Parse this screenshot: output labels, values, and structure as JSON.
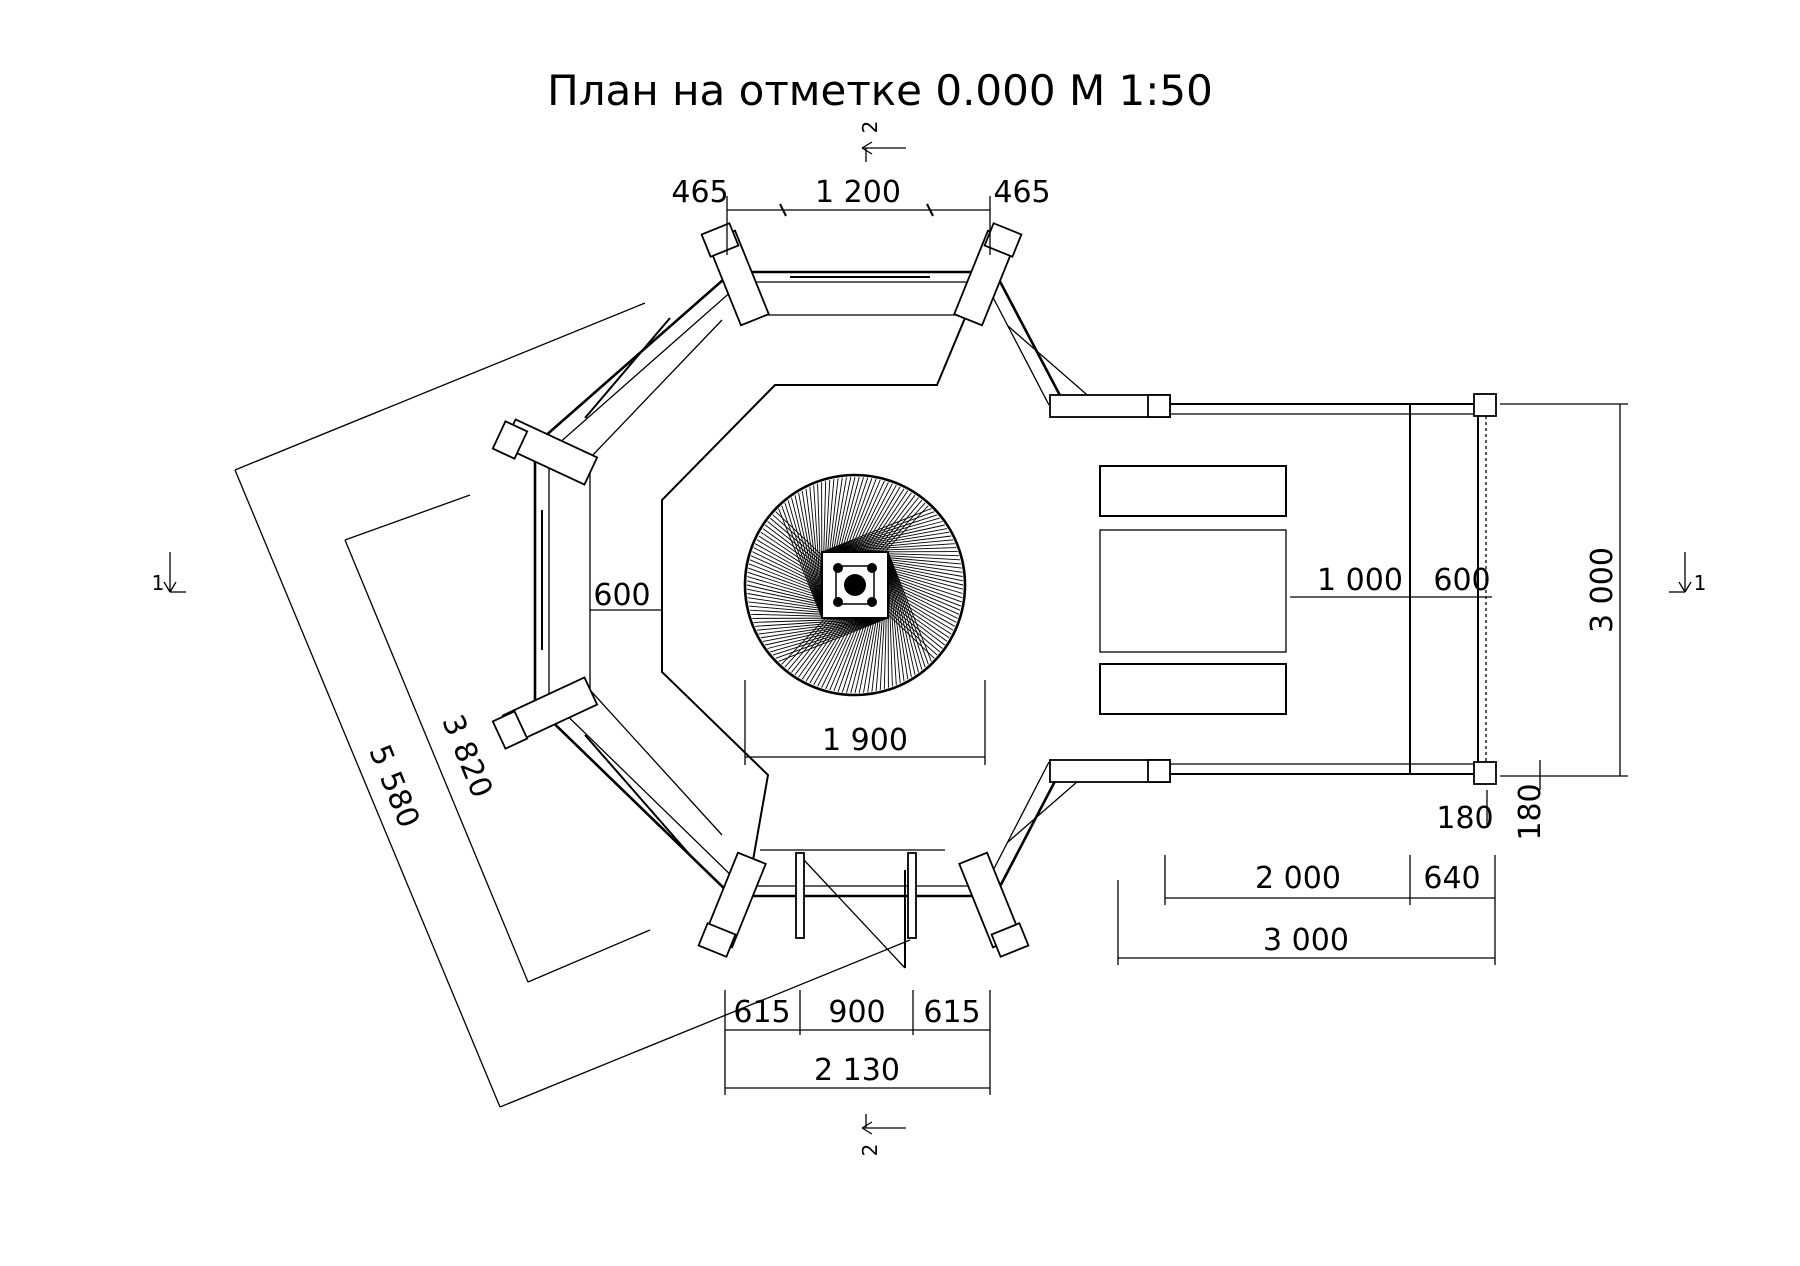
{
  "title": "План на отметке 0.000 М 1:50",
  "section_marks": {
    "top": "2",
    "bottom": "2",
    "left": "1",
    "right": "1"
  },
  "dimensions": {
    "top_left": "465",
    "top_center": "1 200",
    "top_right": "465",
    "inner_left": "600",
    "fireplace": "1 900",
    "bench": "1 000",
    "porch_depth": "600",
    "side_height": "3 000",
    "post_width": "180",
    "post_depth": "180",
    "porch_main": "2 000",
    "porch_extra": "640",
    "porch_total": "3 000",
    "door_left": "615",
    "door_center": "900",
    "door_right": "615",
    "door_total": "2 130",
    "diag_inner": "3 820",
    "diag_outer": "5 580"
  },
  "colors": {
    "line": "#000000",
    "background": "#ffffff"
  }
}
